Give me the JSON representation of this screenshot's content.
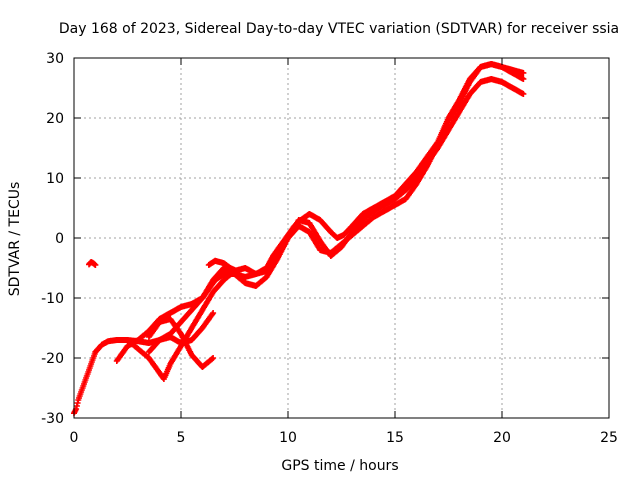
{
  "chart_data": {
    "type": "scatter",
    "title": "Day 168 of 2023, Sidereal Day-to-day VTEC variation (SDTVAR) for receiver ssia",
    "xlabel": "GPS time / hours",
    "ylabel": "SDTVAR / TECUs",
    "xlim": [
      0,
      25
    ],
    "ylim": [
      -30,
      30
    ],
    "x_ticks": [
      0,
      5,
      10,
      15,
      20,
      25
    ],
    "y_ticks": [
      -30,
      -20,
      -10,
      0,
      10,
      20,
      30
    ],
    "grid": true,
    "legend": "none",
    "marker": "plus",
    "series_color": "#ff0000",
    "series": [
      {
        "x": [
          0.0,
          0.1,
          0.2,
          0.3,
          0.4,
          0.5,
          0.6,
          0.7,
          0.8,
          0.9,
          1.0
        ],
        "y": [
          -29.2,
          -28.5,
          -27.0,
          -26.0,
          -25.0,
          -24.0,
          -23.0,
          -22.0,
          -21.0,
          -20.0,
          -19.0
        ]
      },
      {
        "x": [
          0.7,
          0.8,
          0.9,
          1.0
        ],
        "y": [
          -4.4,
          -4.0,
          -4.2,
          -4.5
        ]
      },
      {
        "x": [
          1.0,
          1.3,
          1.6,
          2.0,
          2.5,
          3.0,
          3.5,
          4.0,
          4.5,
          5.0,
          5.5,
          6.0,
          6.3,
          6.6,
          7.0,
          7.5,
          8.0,
          8.5,
          9.0,
          9.3,
          9.6,
          10.0,
          10.3,
          10.6,
          11.0,
          11.5,
          12.0,
          12.3,
          12.6,
          13.0,
          13.5,
          14.0,
          14.5,
          15.0,
          15.5,
          16.0,
          16.3,
          16.6,
          17.0,
          17.5,
          18.0,
          18.5,
          19.0,
          19.5,
          20.0,
          20.5,
          21.0
        ],
        "y": [
          -19.0,
          -17.8,
          -17.2,
          -17.0,
          -17.0,
          -17.2,
          -17.5,
          -17.0,
          -16.0,
          -14.0,
          -12.0,
          -10.0,
          -8.5,
          -7.0,
          -6.0,
          -6.0,
          -6.5,
          -6.0,
          -5.0,
          -3.0,
          -1.5,
          0.5,
          2.0,
          3.0,
          4.0,
          3.0,
          1.0,
          0.0,
          0.5,
          2.0,
          4.0,
          5.0,
          6.0,
          7.0,
          9.0,
          11.0,
          12.5,
          14.0,
          16.0,
          20.0,
          23.0,
          26.5,
          28.5,
          29.0,
          28.5,
          28.0,
          27.5
        ]
      },
      {
        "x": [
          2.0,
          2.5,
          3.0,
          3.5,
          4.0,
          4.5,
          5.0,
          5.5,
          6.0,
          6.5,
          7.0,
          7.5,
          8.0,
          8.5,
          9.0,
          9.5,
          10.0,
          10.5,
          11.0,
          11.5,
          12.0,
          12.5,
          13.0,
          13.5,
          14.0,
          14.5,
          15.0,
          15.5,
          16.0,
          16.5,
          17.0,
          17.5,
          18.0,
          18.5,
          19.0,
          19.5,
          20.0,
          20.5,
          21.0
        ],
        "y": [
          -20.5,
          -18.0,
          -17.0,
          -15.5,
          -13.5,
          -12.5,
          -11.5,
          -11.0,
          -10.0,
          -7.0,
          -5.0,
          -6.0,
          -7.5,
          -8.0,
          -6.5,
          -3.5,
          0.0,
          3.0,
          2.5,
          -0.5,
          -3.0,
          -1.5,
          1.0,
          3.0,
          4.5,
          5.5,
          6.5,
          8.0,
          10.0,
          12.5,
          15.0,
          18.0,
          21.0,
          24.0,
          26.0,
          26.5,
          26.0,
          25.0,
          24.0
        ]
      },
      {
        "x": [
          2.5,
          3.0,
          3.5,
          4.0,
          4.2,
          4.5,
          5.0,
          5.5,
          6.0,
          6.5,
          7.0,
          7.5,
          8.0,
          8.5,
          9.0,
          9.5,
          10.0,
          10.5,
          11.0,
          11.5,
          12.0,
          12.5,
          13.0,
          13.5,
          14.0,
          14.5,
          15.0,
          15.5,
          16.0,
          16.5,
          17.0,
          17.5,
          18.0,
          18.5,
          19.0,
          19.5,
          20.0,
          20.5,
          21.0
        ],
        "y": [
          -17.0,
          -18.5,
          -20.0,
          -22.5,
          -23.5,
          -21.0,
          -18.0,
          -15.0,
          -12.0,
          -9.0,
          -7.0,
          -5.5,
          -5.0,
          -6.0,
          -5.5,
          -3.0,
          0.0,
          2.0,
          1.0,
          -2.0,
          -2.5,
          -1.0,
          0.5,
          2.0,
          3.5,
          4.5,
          5.5,
          6.5,
          9.0,
          12.0,
          15.5,
          19.5,
          22.5,
          26.0,
          28.5,
          29.0,
          28.5,
          27.5,
          26.5
        ]
      },
      {
        "x": [
          3.5,
          4.0,
          4.5,
          5.0,
          5.5,
          6.0,
          6.5
        ],
        "y": [
          -16.5,
          -14.0,
          -13.5,
          -16.0,
          -19.5,
          -21.5,
          -20.0
        ]
      },
      {
        "x": [
          3.5,
          4.0,
          4.5,
          5.0,
          5.5,
          6.0,
          6.5
        ],
        "y": [
          -19.0,
          -17.0,
          -16.5,
          -17.5,
          -17.0,
          -15.0,
          -12.5
        ]
      },
      {
        "x": [
          6.3,
          6.6,
          7.0,
          7.3,
          7.6
        ],
        "y": [
          -4.5,
          -3.8,
          -4.2,
          -5.0,
          -5.5
        ]
      }
    ]
  }
}
